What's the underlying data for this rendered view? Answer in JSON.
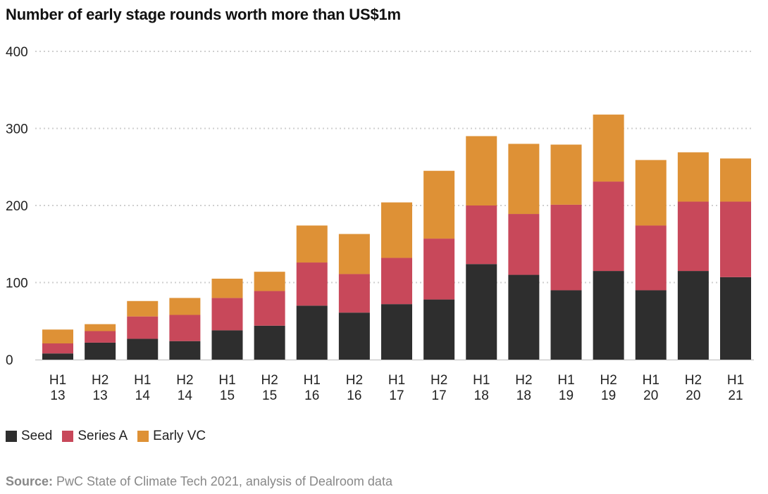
{
  "chart_data": {
    "type": "bar",
    "stacked": true,
    "title": "Number of early stage rounds worth more than US$1m",
    "xlabel": "",
    "ylabel": "",
    "ylim": [
      0,
      400
    ],
    "yticks": [
      0,
      100,
      200,
      300,
      400
    ],
    "grid": true,
    "legend_position": "bottom-left",
    "categories": [
      [
        "H1",
        "13"
      ],
      [
        "H2",
        "13"
      ],
      [
        "H1",
        "14"
      ],
      [
        "H2",
        "14"
      ],
      [
        "H1",
        "15"
      ],
      [
        "H2",
        "15"
      ],
      [
        "H1",
        "16"
      ],
      [
        "H2",
        "16"
      ],
      [
        "H1",
        "17"
      ],
      [
        "H2",
        "17"
      ],
      [
        "H1",
        "18"
      ],
      [
        "H2",
        "18"
      ],
      [
        "H1",
        "19"
      ],
      [
        "H2",
        "19"
      ],
      [
        "H1",
        "20"
      ],
      [
        "H2",
        "20"
      ],
      [
        "H1",
        "21"
      ]
    ],
    "series": [
      {
        "name": "Seed",
        "color": "#2e2e2e",
        "values": [
          8,
          22,
          27,
          24,
          38,
          44,
          70,
          61,
          72,
          78,
          124,
          110,
          90,
          115,
          90,
          115,
          107
        ]
      },
      {
        "name": "Series A",
        "color": "#c8485a",
        "values": [
          13,
          15,
          29,
          34,
          42,
          45,
          56,
          50,
          60,
          79,
          76,
          79,
          111,
          116,
          84,
          90,
          98
        ]
      },
      {
        "name": "Early VC",
        "color": "#de9136",
        "values": [
          18,
          9,
          20,
          22,
          25,
          25,
          48,
          52,
          72,
          88,
          90,
          91,
          78,
          87,
          85,
          64,
          56
        ]
      }
    ]
  },
  "source": {
    "label": "Source:",
    "text": "PwC State of Climate Tech 2021, analysis of Dealroom data"
  }
}
